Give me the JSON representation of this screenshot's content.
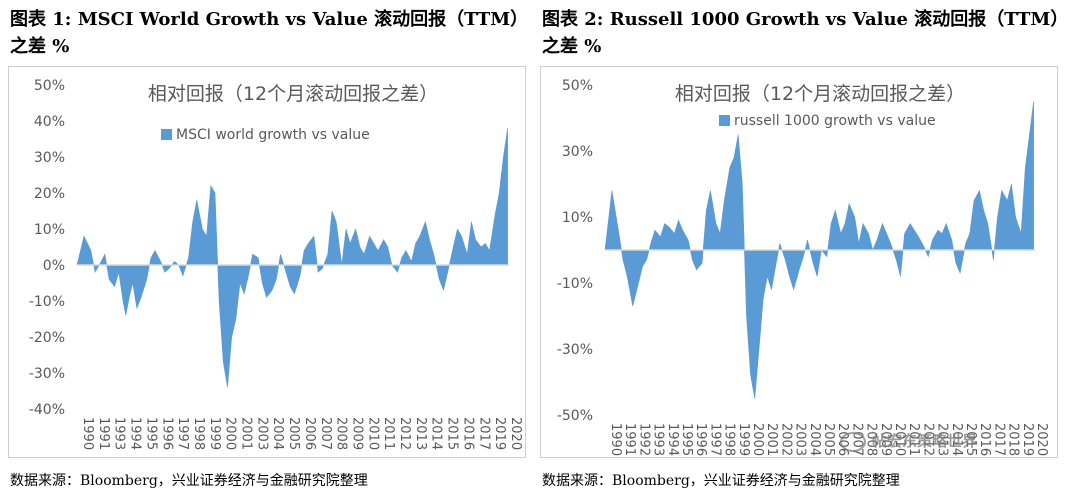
{
  "figures": [
    {
      "title": "图表 1:  MSCI World Growth vs Value  滚动回报（TTM）之差  %",
      "source": "数据来源：Bloomberg，兴业证券经济与金融研究院整理"
    },
    {
      "title": "图表 2:  Russell 1000 Growth vs Value  滚动回报（TTM）之差  %",
      "source": "数据来源：Bloomberg，兴业证券经济与金融研究院整理"
    }
  ],
  "watermark": "帖宏东策略世界",
  "colors": {
    "series": "#5b9bd5",
    "axis": "#d9d9d9",
    "text": "#595959"
  },
  "chart_data": [
    {
      "type": "area",
      "title": "相对回报（12个月滚动回报之差）",
      "legend": "MSCI world growth vs value",
      "ylim": [
        -40,
        50
      ],
      "yticks": [
        50,
        40,
        30,
        20,
        10,
        0,
        -10,
        -20,
        -30,
        -40
      ],
      "ytick_labels": [
        "50%",
        "40%",
        "30%",
        "20%",
        "10%",
        "0%",
        "-10%",
        "-20%",
        "-30%",
        "-40%"
      ],
      "xlim": [
        1990,
        2021
      ],
      "x_labels": [
        "1990",
        "1991",
        "1993",
        "1994",
        "1995",
        "1996",
        "1997",
        "1998",
        "1999",
        "2000",
        "2001",
        "2003",
        "2004",
        "2005",
        "2006",
        "2007",
        "2008",
        "2009",
        "2010",
        "2011",
        "2012",
        "2013",
        "2014",
        "2015",
        "2016",
        "2017",
        "2019",
        "2020"
      ],
      "x": [
        1990.0,
        1990.5,
        1991.0,
        1991.3,
        1991.6,
        1992.0,
        1992.3,
        1992.7,
        1993.0,
        1993.3,
        1993.5,
        1993.8,
        1994.0,
        1994.3,
        1994.6,
        1995.0,
        1995.3,
        1995.6,
        1996.0,
        1996.3,
        1996.6,
        1997.0,
        1997.3,
        1997.6,
        1998.0,
        1998.3,
        1998.6,
        1999.0,
        1999.3,
        1999.6,
        1999.9,
        2000.2,
        2000.5,
        2000.8,
        2001.1,
        2001.4,
        2001.7,
        2002.0,
        2002.3,
        2002.6,
        2003.0,
        2003.3,
        2003.6,
        2004.0,
        2004.3,
        2004.6,
        2005.0,
        2005.3,
        2005.6,
        2006.0,
        2006.3,
        2006.6,
        2007.0,
        2007.3,
        2007.6,
        2008.0,
        2008.3,
        2008.6,
        2009.0,
        2009.3,
        2009.6,
        2010.0,
        2010.3,
        2010.6,
        2011.0,
        2011.3,
        2011.6,
        2012.0,
        2012.3,
        2012.6,
        2013.0,
        2013.3,
        2013.6,
        2014.0,
        2014.3,
        2014.6,
        2015.0,
        2015.3,
        2015.6,
        2016.0,
        2016.3,
        2016.6,
        2017.0,
        2017.3,
        2017.6,
        2018.0,
        2018.3,
        2018.6,
        2019.0,
        2019.3,
        2019.6,
        2020.0,
        2020.3,
        2020.6,
        2020.9
      ],
      "values": [
        0,
        8,
        4,
        -2,
        0,
        3,
        -4,
        -6,
        -2,
        -10,
        -14,
        -8,
        -5,
        -12,
        -9,
        -4,
        2,
        4,
        1,
        -2,
        -1,
        1,
        0,
        -3,
        2,
        12,
        18,
        10,
        8,
        22,
        20,
        -10,
        -27,
        -34,
        -20,
        -15,
        -5,
        -8,
        -3,
        3,
        2,
        -5,
        -9,
        -7,
        -4,
        3,
        -2,
        -6,
        -8,
        -3,
        4,
        6,
        8,
        -2,
        -1,
        3,
        15,
        12,
        0,
        10,
        6,
        10,
        5,
        3,
        8,
        6,
        4,
        7,
        5,
        0,
        -2,
        2,
        4,
        1,
        6,
        8,
        12,
        7,
        3,
        -4,
        -7,
        -2,
        5,
        10,
        8,
        3,
        12,
        7,
        5,
        6,
        4,
        14,
        20,
        30,
        38
      ]
    },
    {
      "type": "area",
      "title": "相对回报（12个月滚动回报之差）",
      "legend": "russell 1000 growth vs value",
      "ylim": [
        -50,
        50
      ],
      "yticks": [
        50,
        30,
        10,
        -10,
        -30,
        -50
      ],
      "ytick_labels": [
        "50%",
        "30%",
        "10%",
        "-10%",
        "-30%",
        "-50%"
      ],
      "xlim": [
        1990,
        2021
      ],
      "x_labels": [
        "1990",
        "1991",
        "1992",
        "1993",
        "1994",
        "1995",
        "1996",
        "1997",
        "1998",
        "1999",
        "2000",
        "2001",
        "2002",
        "2003",
        "2004",
        "2005",
        "2006",
        "2007",
        "2008",
        "2009",
        "2010",
        "2011",
        "2012",
        "2013",
        "2014",
        "2015",
        "2016",
        "2017",
        "2018",
        "2019",
        "2020"
      ],
      "x": [
        1990.0,
        1990.5,
        1991.0,
        1991.3,
        1991.6,
        1992.0,
        1992.3,
        1992.7,
        1993.0,
        1993.3,
        1993.6,
        1994.0,
        1994.3,
        1994.6,
        1995.0,
        1995.3,
        1995.6,
        1996.0,
        1996.3,
        1996.6,
        1997.0,
        1997.3,
        1997.6,
        1998.0,
        1998.3,
        1998.6,
        1999.0,
        1999.3,
        1999.6,
        1999.9,
        2000.2,
        2000.5,
        2000.8,
        2001.1,
        2001.4,
        2001.7,
        2002.0,
        2002.3,
        2002.6,
        2003.0,
        2003.3,
        2003.6,
        2004.0,
        2004.3,
        2004.6,
        2005.0,
        2005.3,
        2005.6,
        2006.0,
        2006.3,
        2006.6,
        2007.0,
        2007.3,
        2007.6,
        2008.0,
        2008.3,
        2008.6,
        2009.0,
        2009.3,
        2009.6,
        2010.0,
        2010.3,
        2010.6,
        2011.0,
        2011.3,
        2011.6,
        2012.0,
        2012.3,
        2012.6,
        2013.0,
        2013.3,
        2013.6,
        2014.0,
        2014.3,
        2014.6,
        2015.0,
        2015.3,
        2015.6,
        2016.0,
        2016.3,
        2016.6,
        2017.0,
        2017.3,
        2017.6,
        2018.0,
        2018.3,
        2018.6,
        2019.0,
        2019.3,
        2019.6,
        2020.0,
        2020.3,
        2020.6,
        2020.9
      ],
      "values": [
        0,
        18,
        5,
        -3,
        -8,
        -17,
        -12,
        -5,
        -3,
        2,
        6,
        4,
        8,
        7,
        5,
        9,
        6,
        3,
        -3,
        -6,
        -4,
        12,
        18,
        8,
        5,
        15,
        25,
        28,
        35,
        20,
        -20,
        -38,
        -45,
        -30,
        -15,
        -8,
        -12,
        -5,
        2,
        -3,
        -8,
        -12,
        -6,
        -2,
        3,
        -4,
        -8,
        0,
        -2,
        8,
        12,
        5,
        8,
        14,
        10,
        2,
        8,
        5,
        0,
        3,
        8,
        5,
        2,
        -3,
        -8,
        5,
        8,
        6,
        4,
        1,
        -2,
        3,
        6,
        5,
        8,
        3,
        -4,
        -7,
        2,
        5,
        15,
        18,
        12,
        8,
        -3,
        10,
        18,
        15,
        20,
        10,
        5,
        25,
        35,
        45
      ]
    }
  ]
}
